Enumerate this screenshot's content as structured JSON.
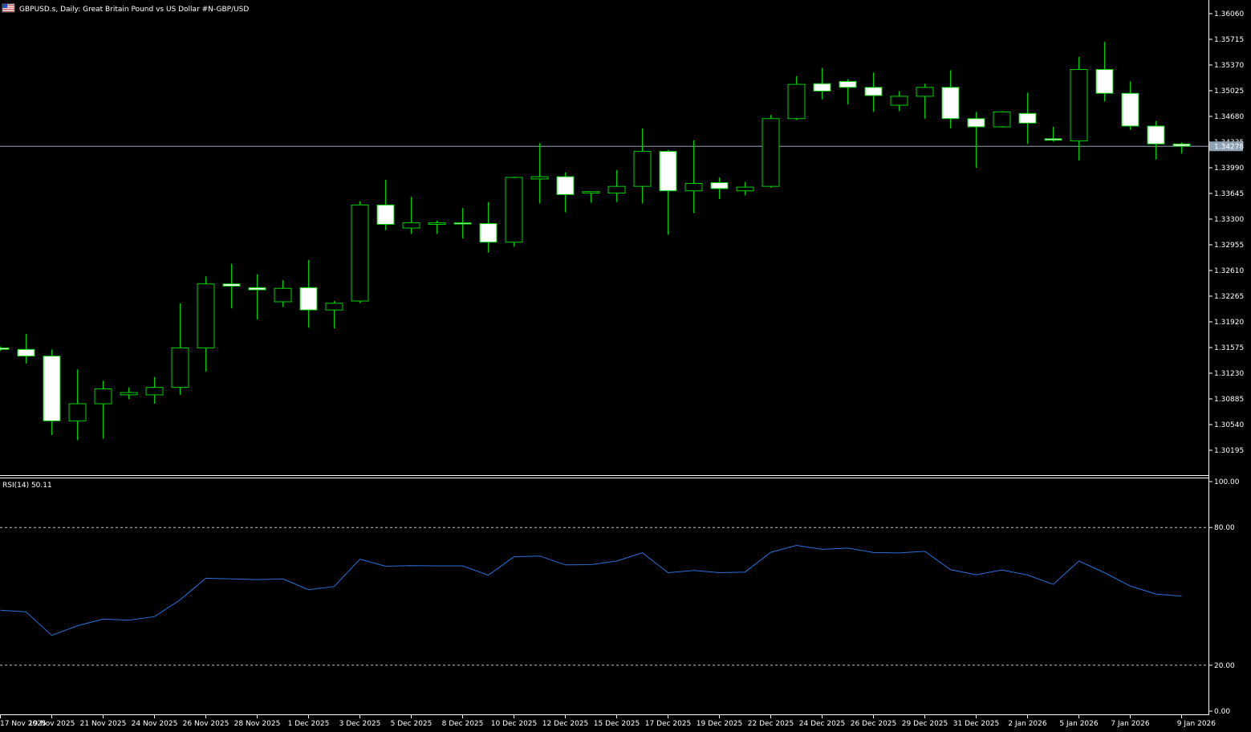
{
  "header": {
    "symbol_title": "GBPUSD.s, Daily:  Great Britain Pound vs US Dollar #N-GBP/USD",
    "rsi_title": "RSI(14) 50.11"
  },
  "current_price_label": "1.34278",
  "colors": {
    "background": "#000000",
    "candle_outline": "#00d000",
    "candle_bull_fill": "#000000",
    "candle_bear_fill": "#ffffff",
    "rsi_line": "#2a6fdb",
    "price_line": "#8fa3b5",
    "axis": "#ffffff",
    "dashed_levels": "#bfbfbf"
  },
  "chart_data": [
    {
      "type": "candlestick",
      "title": "GBPUSD.s, Daily:  Great Britain Pound vs US Dollar #N-GBP/USD",
      "yticks": [
        "1.36060",
        "1.35715",
        "1.35370",
        "1.35025",
        "1.34680",
        "1.34335",
        "1.33990",
        "1.33645",
        "1.33300",
        "1.32955",
        "1.32610",
        "1.32265",
        "1.31920",
        "1.31575",
        "1.31230",
        "1.30885",
        "1.30540",
        "1.30195"
      ],
      "ylim": [
        1.299,
        1.3617
      ],
      "current_price": 1.34278,
      "xtick_labels": [
        "17 Nov 2025",
        "19 Nov 2025",
        "21 Nov 2025",
        "24 Nov 2025",
        "26 Nov 2025",
        "28 Nov 2025",
        "1 Dec 2025",
        "3 Dec 2025",
        "5 Dec 2025",
        "8 Dec 2025",
        "10 Dec 2025",
        "12 Dec 2025",
        "15 Dec 2025",
        "17 Dec 2025",
        "19 Dec 2025",
        "22 Dec 2025",
        "24 Dec 2025",
        "26 Dec 2025",
        "29 Dec 2025",
        "31 Dec 2025",
        "2 Jan 2026",
        "5 Jan 2026",
        "7 Jan 2026",
        "9 Jan 2026"
      ],
      "candles": [
        {
          "o": 1.3157,
          "h": 1.3159,
          "l": 1.3153,
          "c": 1.3155
        },
        {
          "o": 1.3155,
          "h": 1.3176,
          "l": 1.3136,
          "c": 1.3146
        },
        {
          "o": 1.3146,
          "h": 1.3155,
          "l": 1.304,
          "c": 1.3059
        },
        {
          "o": 1.3059,
          "h": 1.3128,
          "l": 1.3033,
          "c": 1.3082
        },
        {
          "o": 1.3082,
          "h": 1.3113,
          "l": 1.3035,
          "c": 1.3102
        },
        {
          "o": 1.3094,
          "h": 1.3104,
          "l": 1.3088,
          "c": 1.3097
        },
        {
          "o": 1.3094,
          "h": 1.3118,
          "l": 1.3082,
          "c": 1.3104
        },
        {
          "o": 1.3104,
          "h": 1.3217,
          "l": 1.3094,
          "c": 1.3157
        },
        {
          "o": 1.3157,
          "h": 1.3253,
          "l": 1.3125,
          "c": 1.3243
        },
        {
          "o": 1.3243,
          "h": 1.327,
          "l": 1.321,
          "c": 1.324
        },
        {
          "o": 1.3238,
          "h": 1.3256,
          "l": 1.3195,
          "c": 1.3235
        },
        {
          "o": 1.3219,
          "h": 1.3248,
          "l": 1.3212,
          "c": 1.3237
        },
        {
          "o": 1.3238,
          "h": 1.3275,
          "l": 1.3184,
          "c": 1.3208
        },
        {
          "o": 1.3208,
          "h": 1.322,
          "l": 1.3183,
          "c": 1.3217
        },
        {
          "o": 1.322,
          "h": 1.3354,
          "l": 1.3217,
          "c": 1.3349
        },
        {
          "o": 1.3349,
          "h": 1.3383,
          "l": 1.3315,
          "c": 1.3323
        },
        {
          "o": 1.3318,
          "h": 1.336,
          "l": 1.331,
          "c": 1.3325
        },
        {
          "o": 1.3323,
          "h": 1.3328,
          "l": 1.331,
          "c": 1.3325
        },
        {
          "o": 1.3325,
          "h": 1.3345,
          "l": 1.3304,
          "c": 1.3324
        },
        {
          "o": 1.3324,
          "h": 1.3353,
          "l": 1.3285,
          "c": 1.3299
        },
        {
          "o": 1.3299,
          "h": 1.3387,
          "l": 1.3293,
          "c": 1.3386
        },
        {
          "o": 1.3384,
          "h": 1.3432,
          "l": 1.3351,
          "c": 1.3387
        },
        {
          "o": 1.3387,
          "h": 1.3393,
          "l": 1.3339,
          "c": 1.3363
        },
        {
          "o": 1.3365,
          "h": 1.3366,
          "l": 1.3352,
          "c": 1.3367
        },
        {
          "o": 1.3365,
          "h": 1.3396,
          "l": 1.3353,
          "c": 1.3374
        },
        {
          "o": 1.3374,
          "h": 1.3452,
          "l": 1.3351,
          "c": 1.3421
        },
        {
          "o": 1.3421,
          "h": 1.3423,
          "l": 1.3309,
          "c": 1.3368
        },
        {
          "o": 1.3368,
          "h": 1.3436,
          "l": 1.3338,
          "c": 1.3378
        },
        {
          "o": 1.3379,
          "h": 1.3386,
          "l": 1.3357,
          "c": 1.3371
        },
        {
          "o": 1.3368,
          "h": 1.338,
          "l": 1.3362,
          "c": 1.3373
        },
        {
          "o": 1.3374,
          "h": 1.347,
          "l": 1.3372,
          "c": 1.3465
        },
        {
          "o": 1.3465,
          "h": 1.3522,
          "l": 1.3463,
          "c": 1.3511
        },
        {
          "o": 1.3512,
          "h": 1.3533,
          "l": 1.3491,
          "c": 1.3502
        },
        {
          "o": 1.3515,
          "h": 1.3518,
          "l": 1.3484,
          "c": 1.3507
        },
        {
          "o": 1.3507,
          "h": 1.3527,
          "l": 1.3474,
          "c": 1.3496
        },
        {
          "o": 1.3483,
          "h": 1.3502,
          "l": 1.3475,
          "c": 1.3495
        },
        {
          "o": 1.3495,
          "h": 1.3512,
          "l": 1.3465,
          "c": 1.3507
        },
        {
          "o": 1.3507,
          "h": 1.353,
          "l": 1.3452,
          "c": 1.3465
        },
        {
          "o": 1.3465,
          "h": 1.3474,
          "l": 1.3399,
          "c": 1.3454
        },
        {
          "o": 1.3454,
          "h": 1.3475,
          "l": 1.3453,
          "c": 1.3474
        },
        {
          "o": 1.3472,
          "h": 1.35,
          "l": 1.3431,
          "c": 1.3459
        },
        {
          "o": 1.3438,
          "h": 1.3454,
          "l": 1.3434,
          "c": 1.3436
        },
        {
          "o": 1.3435,
          "h": 1.3548,
          "l": 1.3409,
          "c": 1.3531
        },
        {
          "o": 1.3531,
          "h": 1.3568,
          "l": 1.3488,
          "c": 1.3499
        },
        {
          "o": 1.3499,
          "h": 1.3515,
          "l": 1.345,
          "c": 1.3455
        },
        {
          "o": 1.3455,
          "h": 1.3462,
          "l": 1.341,
          "c": 1.3431
        },
        {
          "o": 1.3431,
          "h": 1.3433,
          "l": 1.3418,
          "c": 1.3428
        }
      ]
    },
    {
      "type": "line",
      "title": "RSI(14) 50.11",
      "ylim": [
        0,
        100
      ],
      "yticks": [
        "100.00",
        "80.00",
        "20.00",
        "0.00"
      ],
      "levels": [
        80,
        20
      ],
      "values": [
        44.0,
        43.2,
        33.0,
        37.2,
        40.1,
        39.6,
        41.2,
        48.5,
        57.9,
        57.6,
        57.3,
        57.6,
        52.9,
        54.3,
        66.2,
        63.1,
        63.4,
        63.3,
        63.3,
        59.2,
        67.2,
        67.6,
        63.7,
        63.8,
        65.4,
        69.0,
        60.3,
        61.3,
        60.3,
        60.6,
        69.2,
        72.2,
        70.5,
        71.0,
        69.1,
        68.9,
        69.6,
        61.6,
        59.4,
        61.5,
        59.3,
        55.2,
        65.4,
        60.3,
        54.5,
        51.0,
        50.11
      ]
    }
  ]
}
